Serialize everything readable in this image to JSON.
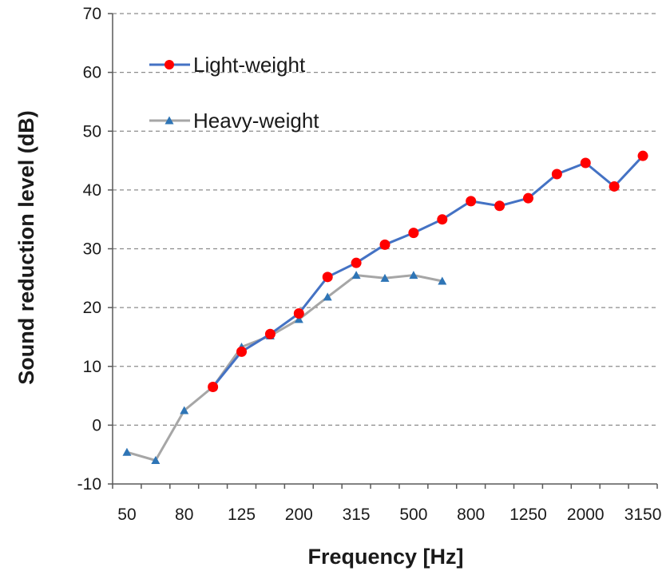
{
  "chart_data": {
    "type": "line",
    "title": "",
    "xlabel": "Frequency [Hz]",
    "ylabel": "Sound reduction level (dB)",
    "ylim": [
      -10,
      70
    ],
    "yticks": [
      -10,
      0,
      10,
      20,
      30,
      40,
      50,
      60,
      70
    ],
    "categories": [
      "50",
      "63",
      "80",
      "100",
      "125",
      "160",
      "200",
      "250",
      "315",
      "400",
      "500",
      "630",
      "800",
      "1000",
      "1250",
      "1600",
      "2000",
      "2500",
      "3150"
    ],
    "xtick_labels": [
      "50",
      "80",
      "125",
      "200",
      "315",
      "500",
      "800",
      "1250",
      "2000",
      "3150"
    ],
    "grid": "horizontal dashed",
    "legend_position": "top-left",
    "series": [
      {
        "name": "Light-weight",
        "line_color": "#4472c4",
        "marker_color": "#ff0000",
        "marker": "circle",
        "values": [
          null,
          null,
          null,
          6.5,
          12.5,
          15.5,
          19.0,
          25.2,
          27.6,
          30.7,
          32.7,
          35.0,
          38.1,
          37.3,
          38.6,
          42.7,
          44.6,
          40.6,
          45.8
        ]
      },
      {
        "name": "Heavy-weight",
        "line_color": "#a6a6a6",
        "marker_color": "#2e75b6",
        "marker": "triangle",
        "values": [
          -4.6,
          -6.0,
          2.5,
          6.5,
          13.3,
          15.2,
          18.0,
          21.8,
          25.5,
          25.0,
          25.5,
          24.5,
          null,
          null,
          null,
          null,
          null,
          null,
          null
        ]
      }
    ]
  }
}
